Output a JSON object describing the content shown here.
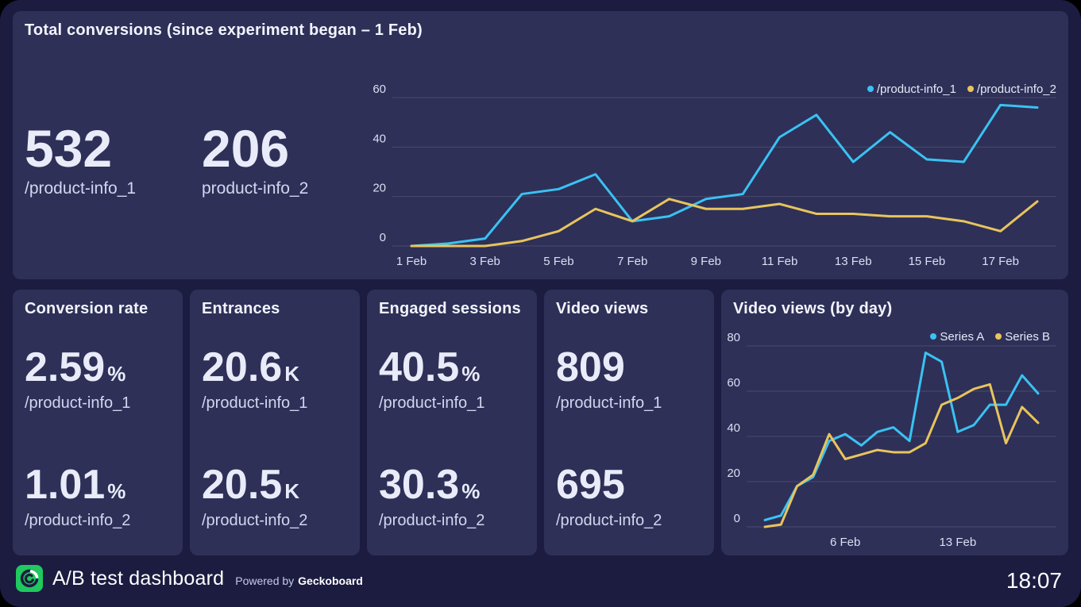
{
  "theme": {
    "page_bg": "#000000",
    "dashboard_bg": "#1b1c40",
    "panel_bg": "#2e3058",
    "series_cyan": "#3ac2f2",
    "series_yellow": "#e8c45c",
    "logo_green": "#1fc95f"
  },
  "top_panel": {
    "title": "Total conversions (since experiment began – 1 Feb)",
    "stats": [
      {
        "value": "532",
        "label": "/product-info_1"
      },
      {
        "value": "206",
        "label": "product-info_2"
      }
    ]
  },
  "panels": [
    {
      "title": "Conversion rate",
      "stats": [
        {
          "value": "2.59",
          "suffix": "%",
          "label": "/product-info_1"
        },
        {
          "value": "1.01",
          "suffix": "%",
          "label": "/product-info_2"
        }
      ]
    },
    {
      "title": "Entrances",
      "stats": [
        {
          "value": "20.6",
          "suffix": "K",
          "label": "/product-info_1"
        },
        {
          "value": "20.5",
          "suffix": "K",
          "label": "/product-info_2"
        }
      ]
    },
    {
      "title": "Engaged sessions",
      "stats": [
        {
          "value": "40.5",
          "suffix": "%",
          "label": "/product-info_1"
        },
        {
          "value": "30.3",
          "suffix": "%",
          "label": "/product-info_2"
        }
      ]
    },
    {
      "title": "Video views",
      "stats": [
        {
          "value": "809",
          "suffix": "",
          "label": "/product-info_1"
        },
        {
          "value": "695",
          "suffix": "",
          "label": "/product-info_2"
        }
      ]
    }
  ],
  "video_panel": {
    "title": "Video views (by day)"
  },
  "chart_data": [
    {
      "type": "line",
      "x": [
        "1 Feb",
        "2 Feb",
        "3 Feb",
        "4 Feb",
        "5 Feb",
        "6 Feb",
        "7 Feb",
        "8 Feb",
        "9 Feb",
        "10 Feb",
        "11 Feb",
        "12 Feb",
        "13 Feb",
        "14 Feb",
        "15 Feb",
        "16 Feb",
        "17 Feb",
        "18 Feb"
      ],
      "series": [
        {
          "name": "/product-info_1",
          "color": "#3ac2f2",
          "values": [
            0,
            1,
            3,
            21,
            23,
            29,
            10,
            12,
            19,
            21,
            44,
            53,
            34,
            46,
            35,
            34,
            57,
            56
          ]
        },
        {
          "name": "/product-info_2",
          "color": "#e8c45c",
          "values": [
            0,
            0,
            0,
            2,
            6,
            15,
            10,
            19,
            15,
            15,
            17,
            13,
            13,
            12,
            12,
            10,
            6,
            18
          ]
        }
      ],
      "ylim": [
        0,
        60
      ],
      "yticks": [
        0,
        20,
        40,
        60
      ],
      "xticks": [
        "1 Feb",
        "3 Feb",
        "5 Feb",
        "7 Feb",
        "9 Feb",
        "11 Feb",
        "13 Feb",
        "15 Feb",
        "17 Feb"
      ],
      "grid": "horizontal",
      "legend_position": "top-right"
    },
    {
      "type": "line",
      "x": [
        "1 Feb",
        "2 Feb",
        "3 Feb",
        "4 Feb",
        "5 Feb",
        "6 Feb",
        "7 Feb",
        "8 Feb",
        "9 Feb",
        "10 Feb",
        "11 Feb",
        "12 Feb",
        "13 Feb",
        "14 Feb",
        "15 Feb",
        "16 Feb",
        "17 Feb",
        "18 Feb"
      ],
      "series": [
        {
          "name": "Series A",
          "color": "#3ac2f2",
          "values": [
            3,
            5,
            18,
            22,
            38,
            41,
            36,
            42,
            44,
            38,
            77,
            73,
            42,
            45,
            54,
            54,
            67,
            59
          ]
        },
        {
          "name": "Series B",
          "color": "#e8c45c",
          "values": [
            0,
            1,
            18,
            23,
            41,
            30,
            32,
            34,
            33,
            33,
            37,
            54,
            57,
            61,
            63,
            37,
            53,
            46
          ]
        }
      ],
      "ylim": [
        0,
        80
      ],
      "yticks": [
        0,
        20,
        40,
        60,
        80
      ],
      "xticks": [
        "6 Feb",
        "13 Feb"
      ],
      "grid": "horizontal",
      "legend_position": "top-right"
    }
  ],
  "footer": {
    "title": "A/B test dashboard",
    "powered_prefix": "Powered by",
    "powered_brand": "Geckoboard",
    "clock": "18:07"
  }
}
